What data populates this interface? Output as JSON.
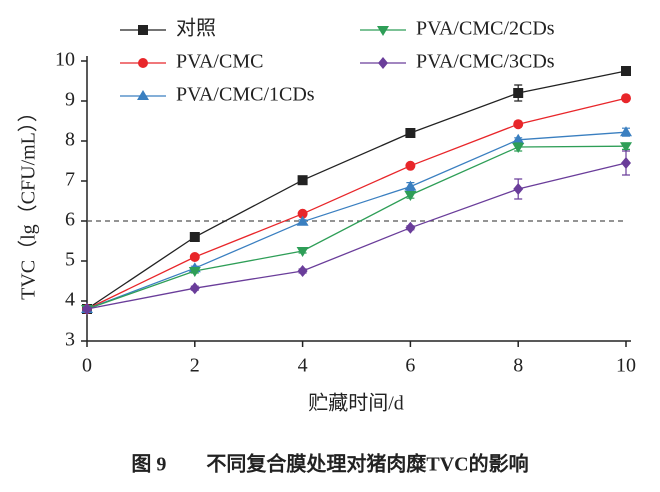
{
  "chart_data": {
    "type": "line",
    "caption": "图 9　　不同复合膜处理对猪肉糜TVC的影响",
    "x_label": "贮藏时间/d",
    "y_label": "TVC（lg（CFU/mL））",
    "x": [
      0,
      2,
      4,
      6,
      8,
      10
    ],
    "xlim": [
      0,
      10
    ],
    "xticks": [
      0,
      2,
      4,
      6,
      8,
      10
    ],
    "ylim": [
      3,
      10
    ],
    "yticks": [
      3,
      4,
      5,
      6,
      7,
      8,
      9,
      10
    ],
    "reference_line": 6,
    "series": [
      {
        "name": "对照",
        "color": "#222222",
        "marker": "square",
        "values": [
          3.8,
          5.6,
          7.02,
          8.2,
          9.2,
          9.75
        ],
        "errors": [
          0.05,
          0.05,
          0.05,
          0.08,
          0.2,
          0.06
        ]
      },
      {
        "name": "PVA/CMC",
        "color": "#e8262a",
        "marker": "circle",
        "values": [
          3.8,
          5.1,
          6.18,
          7.38,
          8.42,
          9.07
        ],
        "errors": [
          0.05,
          0.05,
          0.05,
          0.05,
          0.05,
          0.05
        ]
      },
      {
        "name": "PVA/CMC/1CDs",
        "color": "#3a7fc0",
        "marker": "triangle-up",
        "values": [
          3.8,
          4.82,
          5.98,
          6.86,
          8.03,
          8.22
        ],
        "errors": [
          0.05,
          0.05,
          0.05,
          0.1,
          0.05,
          0.1
        ]
      },
      {
        "name": "PVA/CMC/2CDs",
        "color": "#2e9e57",
        "marker": "triangle-down",
        "values": [
          3.8,
          4.75,
          5.25,
          6.65,
          7.85,
          7.87
        ],
        "errors": [
          0.05,
          0.05,
          0.05,
          0.08,
          0.1,
          0.08
        ]
      },
      {
        "name": "PVA/CMC/3CDs",
        "color": "#6a3d9a",
        "marker": "diamond",
        "values": [
          3.8,
          4.32,
          4.75,
          5.83,
          6.8,
          7.45
        ],
        "errors": [
          0.05,
          0.05,
          0.05,
          0.05,
          0.25,
          0.3
        ]
      }
    ]
  }
}
